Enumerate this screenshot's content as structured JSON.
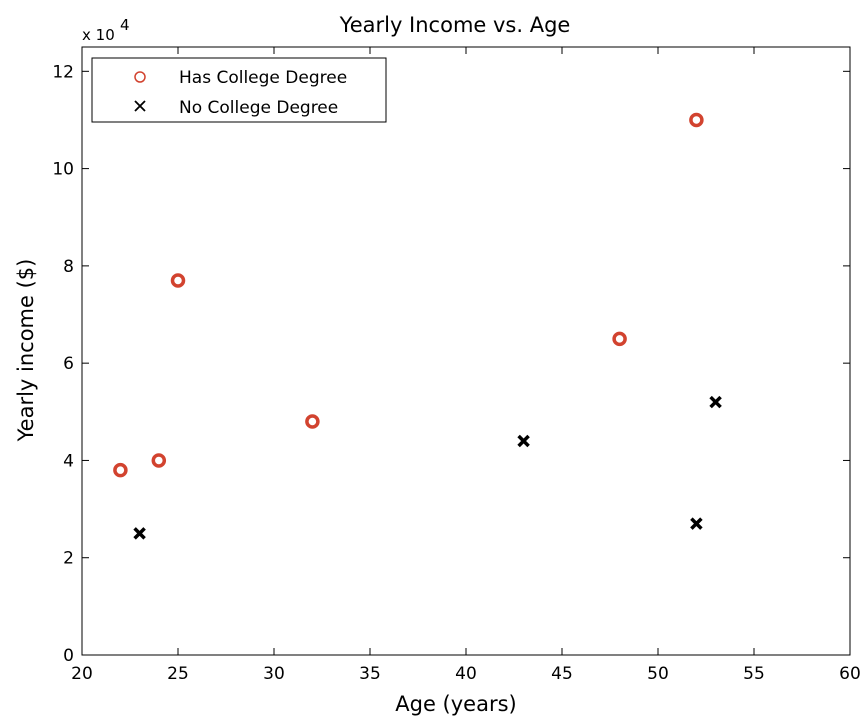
{
  "chart_data": {
    "type": "scatter",
    "title": "Yearly Income vs. Age",
    "xlabel": "Age (years)",
    "ylabel": "Yearly income ($)",
    "xlim": [
      20,
      60
    ],
    "ylim": [
      0,
      125000
    ],
    "x_ticks": [
      20,
      25,
      30,
      35,
      40,
      45,
      50,
      55,
      60
    ],
    "y_ticks": [
      0,
      20000,
      40000,
      60000,
      80000,
      100000,
      120000
    ],
    "y_tick_labels": [
      "0",
      "2",
      "4",
      "6",
      "8",
      "10",
      "12"
    ],
    "y_multiplier": {
      "base": "x 10",
      "exponent": "4"
    },
    "grid": false,
    "legend_position": "top-left",
    "series": [
      {
        "name": "Has College Degree",
        "marker": "circle",
        "color": "#d2432f",
        "points": [
          {
            "x": 22,
            "y": 38000
          },
          {
            "x": 24,
            "y": 40000
          },
          {
            "x": 25,
            "y": 77000
          },
          {
            "x": 32,
            "y": 48000
          },
          {
            "x": 48,
            "y": 65000
          },
          {
            "x": 52,
            "y": 110000
          }
        ]
      },
      {
        "name": "No College Degree",
        "marker": "x",
        "color": "#000000",
        "points": [
          {
            "x": 23,
            "y": 25000
          },
          {
            "x": 43,
            "y": 44000
          },
          {
            "x": 52,
            "y": 27000
          },
          {
            "x": 53,
            "y": 52000
          }
        ]
      }
    ]
  }
}
